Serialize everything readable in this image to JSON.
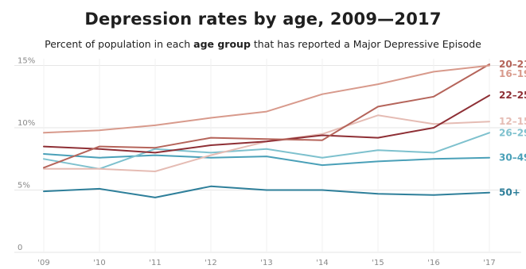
{
  "chart_data": {
    "type": "line",
    "title": "Depression rates by age, 2009—2017",
    "subtitle": {
      "before": "Percent of population in each ",
      "bold": "age group",
      "after": " that has reported a Major Depressive Episode"
    },
    "x": [
      "'09",
      "'10",
      "'11",
      "'12",
      "'13",
      "'14",
      "'15",
      "'16",
      "'17"
    ],
    "y_ticks": [
      {
        "value": 0,
        "label": "0"
      },
      {
        "value": 5,
        "label": "5%"
      },
      {
        "value": 10,
        "label": "10%"
      },
      {
        "value": 15,
        "label": "15%"
      }
    ],
    "ylim": [
      0,
      15.8
    ],
    "grid": true,
    "legend": "direct labels at right end of lines",
    "series": [
      {
        "name": "16–19",
        "color": "#d89a8c",
        "values": [
          9.6,
          9.8,
          10.2,
          10.8,
          11.3,
          12.7,
          13.5,
          14.5,
          15.0
        ]
      },
      {
        "name": "20–21",
        "color": "#b5645a",
        "values": [
          6.8,
          8.5,
          8.4,
          9.2,
          9.1,
          9.0,
          11.7,
          12.5,
          15.1
        ]
      },
      {
        "name": "22–25",
        "color": "#8e2f35",
        "values": [
          8.5,
          8.3,
          8.0,
          8.6,
          8.9,
          9.4,
          9.2,
          10.0,
          12.6
        ]
      },
      {
        "name": "12–15",
        "color": "#e5bcb4",
        "values": [
          6.7,
          6.7,
          6.5,
          7.8,
          8.9,
          9.5,
          11.0,
          10.3,
          10.5
        ]
      },
      {
        "name": "26–29",
        "color": "#7ec1ce",
        "values": [
          7.5,
          6.7,
          8.3,
          8.0,
          8.3,
          7.6,
          8.2,
          8.0,
          9.6
        ]
      },
      {
        "name": "30–49",
        "color": "#4aa0b8",
        "values": [
          7.9,
          7.6,
          7.8,
          7.6,
          7.7,
          7.0,
          7.3,
          7.5,
          7.6
        ]
      },
      {
        "name": "50+",
        "color": "#2e7f9a",
        "values": [
          4.9,
          5.1,
          4.4,
          5.3,
          5.0,
          5.0,
          4.7,
          4.6,
          4.8
        ]
      }
    ]
  }
}
